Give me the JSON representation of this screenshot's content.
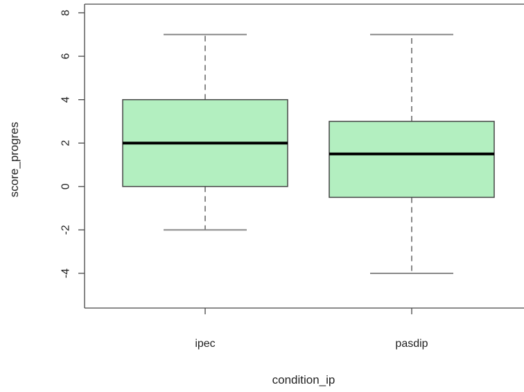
{
  "chart_data": {
    "type": "boxplot",
    "title": "",
    "xlabel": "condition_ip",
    "ylabel": "score_progres",
    "ylim": [
      -5.6,
      8.4
    ],
    "yticks": [
      -4,
      -2,
      0,
      2,
      4,
      6,
      8
    ],
    "grid": false,
    "categories": [
      "ipec",
      "pasdip"
    ],
    "boxes": [
      {
        "category": "ipec",
        "whisker_low": -2,
        "q1": 0,
        "median": 2,
        "q3": 4,
        "whisker_high": 7
      },
      {
        "category": "pasdip",
        "whisker_low": -4,
        "q1": -0.5,
        "median": 1.5,
        "q3": 3,
        "whisker_high": 7
      }
    ],
    "colors": {
      "box_fill": "#b3efc0",
      "box_stroke": "#444444",
      "median": "#000000",
      "whisker": "#888888",
      "axis": "#444444"
    }
  }
}
